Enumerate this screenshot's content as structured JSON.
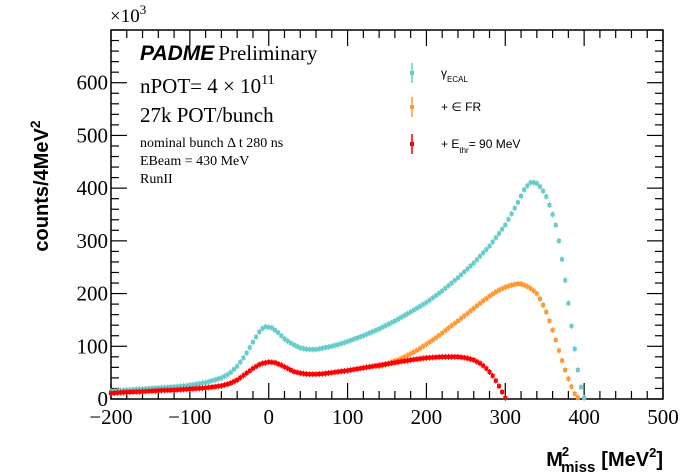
{
  "chart_data": {
    "type": "scatter",
    "title": "",
    "xlabel": "M",
    "xlabel_sup": "2",
    "xlabel_sub": "miss",
    "xlabel_unit_pre": "[MeV",
    "xlabel_unit_sup": "2",
    "xlabel_unit_post": "]",
    "ylabel": "counts/4MeV",
    "ylabel_sup": "2",
    "y_multiplier_base": "×10",
    "y_multiplier_exp": "3",
    "xlim": [
      -200,
      500
    ],
    "ylim": [
      0,
      700
    ],
    "x_ticks": [
      "−200",
      "−100",
      "0",
      "100",
      "200",
      "300",
      "400",
      "500"
    ],
    "x_tick_values": [
      -200,
      -100,
      0,
      100,
      200,
      300,
      400,
      500
    ],
    "y_ticks": [
      "0",
      "100",
      "200",
      "300",
      "400",
      "500",
      "600"
    ],
    "y_tick_values": [
      0,
      100,
      200,
      300,
      400,
      500,
      600
    ],
    "grid": false,
    "legend_position": "top-center",
    "annotations": {
      "experiment": "PADME",
      "status": "Preliminary",
      "npot_prefix": "nPOT= 4 × 10",
      "npot_exp": "11",
      "pot_bunch": "27k POT/bunch",
      "bunch_line": "nominal bunch Δ t 280 ns",
      "ebeam": "EBeam = 430 MeV",
      "run": "RunII"
    },
    "series": [
      {
        "name": "γ_ECAL",
        "label_main": "γ",
        "label_sub": "ECAL",
        "label_post": "",
        "color": "#66cccc",
        "points": [
          [
            -200,
            15
          ],
          [
            -180,
            17
          ],
          [
            -160,
            19
          ],
          [
            -140,
            21
          ],
          [
            -120,
            23
          ],
          [
            -100,
            26
          ],
          [
            -80,
            31
          ],
          [
            -60,
            40
          ],
          [
            -50,
            48
          ],
          [
            -40,
            62
          ],
          [
            -30,
            82
          ],
          [
            -20,
            108
          ],
          [
            -10,
            132
          ],
          [
            -4,
            137
          ],
          [
            4,
            135
          ],
          [
            12,
            126
          ],
          [
            20,
            114
          ],
          [
            30,
            104
          ],
          [
            40,
            97
          ],
          [
            50,
            94
          ],
          [
            60,
            94
          ],
          [
            70,
            97
          ],
          [
            80,
            100
          ],
          [
            90,
            104
          ],
          [
            100,
            109
          ],
          [
            120,
            120
          ],
          [
            140,
            133
          ],
          [
            160,
            148
          ],
          [
            180,
            165
          ],
          [
            200,
            183
          ],
          [
            220,
            205
          ],
          [
            240,
            230
          ],
          [
            260,
            258
          ],
          [
            280,
            290
          ],
          [
            300,
            330
          ],
          [
            315,
            370
          ],
          [
            325,
            400
          ],
          [
            333,
            412
          ],
          [
            340,
            409
          ],
          [
            346,
            400
          ],
          [
            352,
            384
          ],
          [
            358,
            360
          ],
          [
            364,
            330
          ],
          [
            370,
            285
          ],
          [
            376,
            225
          ],
          [
            382,
            160
          ],
          [
            388,
            95
          ],
          [
            393,
            45
          ],
          [
            397,
            15
          ],
          [
            400,
            2
          ]
        ]
      },
      {
        "name": "+ ∈ FR",
        "label_main": "+ ∈ FR",
        "label_sub": "",
        "label_post": "",
        "color": "#ff9933",
        "points": [
          [
            140,
            62
          ],
          [
            150,
            66
          ],
          [
            160,
            72
          ],
          [
            170,
            78
          ],
          [
            180,
            86
          ],
          [
            190,
            94
          ],
          [
            200,
            104
          ],
          [
            210,
            114
          ],
          [
            220,
            125
          ],
          [
            230,
            137
          ],
          [
            240,
            148
          ],
          [
            250,
            160
          ],
          [
            260,
            172
          ],
          [
            270,
            184
          ],
          [
            280,
            195
          ],
          [
            290,
            205
          ],
          [
            300,
            212
          ],
          [
            310,
            217
          ],
          [
            318,
            219
          ],
          [
            326,
            215
          ],
          [
            334,
            208
          ],
          [
            340,
            200
          ],
          [
            346,
            185
          ],
          [
            352,
            165
          ],
          [
            358,
            140
          ],
          [
            364,
            112
          ],
          [
            370,
            82
          ],
          [
            376,
            55
          ],
          [
            382,
            30
          ],
          [
            388,
            10
          ],
          [
            393,
            1
          ]
        ]
      },
      {
        "name": "+ E_thr= 90 MeV",
        "label_main": "+ E",
        "label_sub": "thr",
        "label_post": "= 90 MeV",
        "color": "#ff0000",
        "points": [
          [
            -200,
            11
          ],
          [
            -180,
            13
          ],
          [
            -160,
            14
          ],
          [
            -140,
            16
          ],
          [
            -120,
            17
          ],
          [
            -100,
            19
          ],
          [
            -80,
            21
          ],
          [
            -60,
            25
          ],
          [
            -50,
            29
          ],
          [
            -40,
            36
          ],
          [
            -30,
            47
          ],
          [
            -20,
            58
          ],
          [
            -10,
            67
          ],
          [
            0,
            70
          ],
          [
            8,
            69
          ],
          [
            16,
            64
          ],
          [
            24,
            58
          ],
          [
            32,
            52
          ],
          [
            40,
            49
          ],
          [
            50,
            47
          ],
          [
            60,
            47
          ],
          [
            70,
            48
          ],
          [
            80,
            50
          ],
          [
            90,
            52
          ],
          [
            100,
            54
          ],
          [
            120,
            59
          ],
          [
            140,
            64
          ],
          [
            160,
            69
          ],
          [
            180,
            74
          ],
          [
            200,
            78
          ],
          [
            220,
            80
          ],
          [
            240,
            80
          ],
          [
            250,
            78
          ],
          [
            260,
            74
          ],
          [
            270,
            66
          ],
          [
            278,
            55
          ],
          [
            284,
            44
          ],
          [
            290,
            30
          ],
          [
            295,
            16
          ],
          [
            300,
            2
          ]
        ]
      }
    ]
  }
}
